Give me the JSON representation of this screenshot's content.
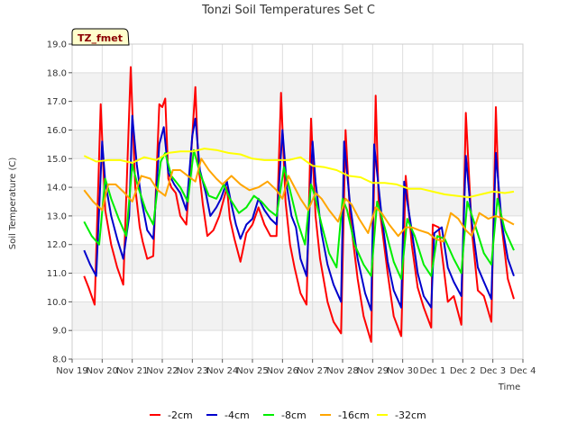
{
  "chart_data": {
    "type": "line",
    "title": "Tonzi Soil Temperatures Set C",
    "xlabel": "Time",
    "ylabel": "Soil Temperature (C)",
    "badge": "TZ_fmet",
    "xlim": [
      0,
      15
    ],
    "ylim": [
      8.0,
      19.0
    ],
    "yticks": [
      8.0,
      9.0,
      10.0,
      11.0,
      12.0,
      13.0,
      14.0,
      15.0,
      16.0,
      17.0,
      18.0,
      19.0
    ],
    "xticks": [
      "Nov 19",
      "Nov 20",
      "Nov 21",
      "Nov 22",
      "Nov 23",
      "Nov 24",
      "Nov 25",
      "Nov 26",
      "Nov 27",
      "Nov 28",
      "Nov 29",
      "Nov 30",
      "Dec 1",
      "Dec 2",
      "Dec 3",
      "Dec 4"
    ],
    "grid": "horizontal bands",
    "legend_position": "bottom",
    "x_unit": "days since Nov 19 00:00",
    "series": [
      {
        "name": "-2cm",
        "color": "#ff0000",
        "x": [
          0.4,
          0.55,
          0.75,
          0.95,
          1.1,
          1.3,
          1.5,
          1.7,
          1.95,
          2.1,
          2.25,
          2.35,
          2.5,
          2.7,
          2.9,
          3.0,
          3.1,
          3.2,
          3.3,
          3.45,
          3.6,
          3.8,
          4.0,
          4.1,
          4.2,
          4.35,
          4.5,
          4.7,
          4.9,
          5.15,
          5.25,
          5.4,
          5.6,
          5.8,
          6.0,
          6.2,
          6.4,
          6.6,
          6.8,
          6.95,
          7.1,
          7.25,
          7.4,
          7.6,
          7.8,
          7.95,
          8.1,
          8.25,
          8.5,
          8.7,
          8.95,
          9.1,
          9.25,
          9.5,
          9.7,
          9.95,
          10.1,
          10.2,
          10.5,
          10.7,
          10.95,
          11.1,
          11.3,
          11.5,
          11.7,
          11.95,
          12.0,
          12.2,
          12.5,
          12.7,
          12.95,
          13.1,
          13.3,
          13.5,
          13.7,
          13.95,
          14.1,
          14.2,
          14.5,
          14.7
        ],
        "y": [
          10.9,
          10.5,
          9.9,
          16.9,
          13.2,
          12.0,
          11.2,
          10.6,
          18.2,
          14.0,
          12.6,
          12.1,
          11.5,
          11.6,
          16.9,
          16.8,
          17.1,
          14.3,
          14.0,
          13.8,
          13.0,
          12.7,
          15.8,
          17.5,
          14.8,
          13.4,
          12.3,
          12.5,
          13.0,
          14.0,
          12.9,
          12.2,
          11.4,
          12.4,
          12.7,
          13.3,
          12.7,
          12.3,
          12.3,
          17.3,
          13.5,
          12.0,
          11.2,
          10.3,
          9.9,
          16.4,
          13.0,
          11.5,
          10.0,
          9.3,
          8.9,
          16.0,
          13.0,
          10.8,
          9.5,
          8.6,
          17.2,
          13.5,
          11.0,
          9.5,
          8.8,
          14.4,
          12.0,
          10.5,
          9.8,
          9.1,
          12.7,
          12.6,
          10.0,
          10.2,
          9.2,
          16.6,
          12.5,
          10.4,
          10.2,
          9.3,
          16.8,
          13.5,
          10.8,
          10.1
        ]
      },
      {
        "name": "-4cm",
        "color": "#0000cc",
        "x": [
          0.4,
          0.6,
          0.8,
          1.0,
          1.1,
          1.3,
          1.5,
          1.7,
          1.9,
          2.0,
          2.15,
          2.3,
          2.5,
          2.7,
          2.9,
          3.05,
          3.2,
          3.4,
          3.6,
          3.8,
          4.0,
          4.1,
          4.25,
          4.45,
          4.6,
          4.8,
          4.95,
          5.15,
          5.3,
          5.45,
          5.6,
          5.8,
          6.0,
          6.2,
          6.4,
          6.6,
          6.8,
          7.0,
          7.15,
          7.3,
          7.45,
          7.6,
          7.8,
          8.0,
          8.1,
          8.3,
          8.5,
          8.7,
          8.95,
          9.05,
          9.25,
          9.5,
          9.75,
          9.95,
          10.05,
          10.3,
          10.5,
          10.7,
          10.95,
          11.05,
          11.3,
          11.5,
          11.7,
          11.95,
          12.05,
          12.3,
          12.5,
          12.7,
          12.95,
          13.1,
          13.3,
          13.5,
          13.7,
          13.95,
          14.1,
          14.3,
          14.5,
          14.7
        ],
        "y": [
          11.8,
          11.3,
          10.9,
          15.6,
          14.2,
          13.0,
          12.2,
          11.5,
          13.0,
          16.5,
          14.8,
          13.6,
          12.5,
          12.2,
          15.5,
          16.1,
          14.5,
          14.1,
          13.8,
          13.2,
          15.8,
          16.4,
          14.6,
          13.8,
          13.0,
          13.3,
          13.6,
          14.2,
          13.4,
          12.7,
          12.2,
          12.7,
          12.9,
          13.6,
          13.2,
          12.9,
          12.7,
          16.0,
          14.0,
          13.0,
          12.6,
          11.5,
          10.9,
          15.6,
          14.2,
          12.4,
          11.3,
          10.6,
          10.0,
          15.6,
          13.4,
          11.5,
          10.3,
          9.7,
          15.5,
          13.0,
          11.4,
          10.4,
          9.8,
          14.2,
          12.5,
          11.0,
          10.2,
          9.8,
          12.4,
          12.6,
          11.2,
          10.7,
          10.2,
          15.1,
          12.8,
          11.2,
          10.7,
          10.1,
          15.2,
          12.7,
          11.5,
          10.9
        ]
      },
      {
        "name": "-8cm",
        "color": "#00ee00",
        "x": [
          0.4,
          0.65,
          0.9,
          1.1,
          1.3,
          1.55,
          1.8,
          2.0,
          2.2,
          2.45,
          2.7,
          2.95,
          3.1,
          3.3,
          3.6,
          3.85,
          4.05,
          4.25,
          4.55,
          4.8,
          5.05,
          5.25,
          5.55,
          5.8,
          6.05,
          6.3,
          6.55,
          6.8,
          7.05,
          7.25,
          7.5,
          7.75,
          7.95,
          8.05,
          8.3,
          8.55,
          8.8,
          9.0,
          9.15,
          9.4,
          9.7,
          9.95,
          10.15,
          10.4,
          10.7,
          10.95,
          11.15,
          11.4,
          11.7,
          11.95,
          12.15,
          12.4,
          12.7,
          12.95,
          13.15,
          13.4,
          13.7,
          13.95,
          14.15,
          14.4,
          14.7
        ],
        "y": [
          12.8,
          12.3,
          12.0,
          14.3,
          13.6,
          12.9,
          12.3,
          14.8,
          14.0,
          13.2,
          12.7,
          14.9,
          15.2,
          14.4,
          14.0,
          13.5,
          15.3,
          14.5,
          13.7,
          13.6,
          14.1,
          13.6,
          13.1,
          13.3,
          13.7,
          13.5,
          13.2,
          13.0,
          14.7,
          13.9,
          12.8,
          12.0,
          14.1,
          13.8,
          12.7,
          11.7,
          11.2,
          13.6,
          13.2,
          12.0,
          11.3,
          10.9,
          13.5,
          12.6,
          11.4,
          10.8,
          12.9,
          12.3,
          11.3,
          10.9,
          12.3,
          12.2,
          11.5,
          11.0,
          13.5,
          12.7,
          11.7,
          11.3,
          13.6,
          12.5,
          11.8
        ]
      },
      {
        "name": "-16cm",
        "color": "#ffa500",
        "x": [
          0.4,
          0.7,
          1.0,
          1.2,
          1.45,
          1.75,
          2.0,
          2.3,
          2.6,
          2.85,
          3.1,
          3.35,
          3.6,
          3.85,
          4.1,
          4.3,
          4.55,
          4.8,
          5.0,
          5.3,
          5.6,
          5.9,
          6.2,
          6.5,
          6.8,
          7.0,
          7.2,
          7.4,
          7.6,
          7.85,
          8.1,
          8.3,
          8.55,
          8.85,
          9.1,
          9.3,
          9.55,
          9.85,
          10.1,
          10.3,
          10.55,
          10.85,
          11.1,
          11.3,
          11.55,
          11.85,
          12.1,
          12.35,
          12.6,
          12.85,
          13.1,
          13.3,
          13.55,
          13.85,
          14.1,
          14.35,
          14.7
        ],
        "y": [
          13.9,
          13.5,
          13.2,
          14.1,
          14.1,
          13.8,
          13.5,
          14.4,
          14.3,
          13.9,
          13.7,
          14.6,
          14.6,
          14.4,
          14.2,
          15.0,
          14.6,
          14.3,
          14.1,
          14.4,
          14.1,
          13.9,
          14.0,
          14.2,
          13.9,
          13.6,
          14.4,
          14.0,
          13.6,
          13.2,
          13.8,
          13.6,
          13.2,
          12.8,
          13.6,
          13.4,
          12.9,
          12.4,
          13.3,
          13.1,
          12.7,
          12.3,
          12.6,
          12.6,
          12.5,
          12.4,
          12.2,
          12.1,
          13.1,
          12.9,
          12.5,
          12.3,
          13.1,
          12.9,
          13.0,
          12.9,
          12.7
        ]
      },
      {
        "name": "-32cm",
        "color": "#ffff00",
        "x": [
          0.4,
          0.8,
          1.2,
          1.6,
          2.0,
          2.4,
          2.8,
          3.2,
          3.6,
          4.0,
          4.4,
          4.8,
          5.2,
          5.6,
          6.0,
          6.4,
          6.8,
          7.2,
          7.6,
          8.0,
          8.4,
          8.8,
          9.2,
          9.6,
          10.0,
          10.4,
          10.8,
          11.2,
          11.6,
          12.0,
          12.4,
          12.8,
          13.2,
          13.6,
          14.0,
          14.4,
          14.7
        ],
        "y": [
          15.1,
          14.9,
          14.95,
          14.95,
          14.85,
          15.05,
          14.95,
          15.2,
          15.25,
          15.25,
          15.35,
          15.3,
          15.2,
          15.15,
          15.0,
          14.95,
          14.95,
          14.95,
          15.05,
          14.75,
          14.7,
          14.6,
          14.4,
          14.35,
          14.15,
          14.15,
          14.1,
          13.95,
          13.95,
          13.85,
          13.75,
          13.7,
          13.65,
          13.75,
          13.85,
          13.8,
          13.85
        ]
      }
    ]
  }
}
